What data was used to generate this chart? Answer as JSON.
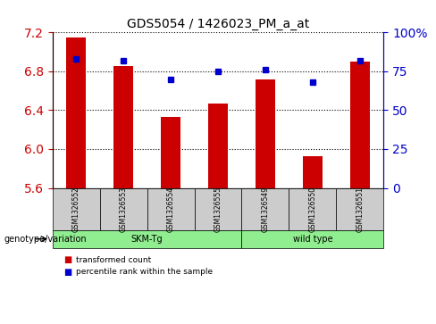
{
  "title": "GDS5054 / 1426023_PM_a_at",
  "samples": [
    "GSM1326552",
    "GSM1326553",
    "GSM1326554",
    "GSM1326555",
    "GSM1326549",
    "GSM1326550",
    "GSM1326551"
  ],
  "red_values": [
    7.15,
    6.85,
    6.33,
    6.47,
    6.72,
    5.93,
    6.9
  ],
  "blue_values": [
    83,
    82,
    70,
    75,
    76,
    68,
    82
  ],
  "ylim_left": [
    5.6,
    7.2
  ],
  "ylim_right": [
    0,
    100
  ],
  "yticks_left": [
    5.6,
    6.0,
    6.4,
    6.8,
    7.2
  ],
  "yticks_right": [
    0,
    25,
    50,
    75,
    100
  ],
  "ytick_labels_right": [
    "0",
    "25",
    "50",
    "75",
    "100%"
  ],
  "groups": [
    {
      "label": "SKM-Tg",
      "indices": [
        0,
        1,
        2,
        3
      ],
      "color": "#90EE90"
    },
    {
      "label": "wild type",
      "indices": [
        4,
        5,
        6
      ],
      "color": "#90EE90"
    }
  ],
  "bar_color": "#cc0000",
  "dot_color": "#0000cc",
  "bar_width": 0.4,
  "legend_red": "transformed count",
  "legend_blue": "percentile rank within the sample",
  "genotype_label": "genotype/variation",
  "background_color": "#ffffff",
  "tick_color_left": "#cc0000",
  "tick_color_right": "#0000cc"
}
